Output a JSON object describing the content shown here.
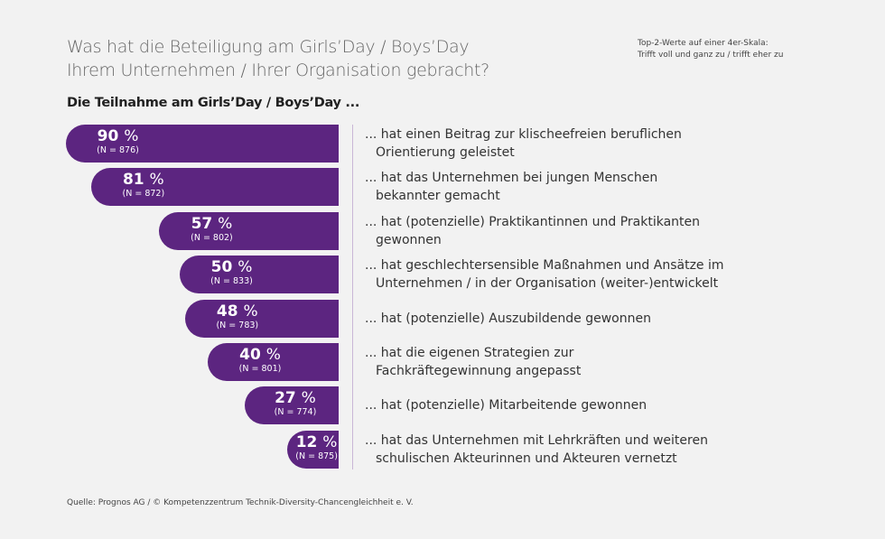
{
  "title_line1": "Was hat die Beteiligung am Girls’Day / Boys’Day",
  "title_line2": "Ihrem Unternehmen / Ihrer Organisation gebracht?",
  "note_line1": "Top-2-Werte auf einer 4er-Skala:",
  "note_line2": "Trifft voll und ganz zu / trifft eher zu",
  "subtitle": "Die Teilnahme am Girls’Day / Boys’Day ...",
  "source": "Quelle: Prognos AG / © Kompetenzzentrum Technik-Diversity-Chancengleichheit e. V.",
  "colors": {
    "bar": "#5c2580",
    "background": "#f2f2f2"
  },
  "chart_data": {
    "type": "bar",
    "orientation": "horizontal",
    "unit": "%",
    "categories": [
      [
        "... hat einen Beitrag zur klischeefreien beruflichen",
        "Orientierung geleistet"
      ],
      [
        "... hat das Unternehmen bei jungen Menschen",
        "bekannter gemacht"
      ],
      [
        "... hat (potenzielle) Praktikantinnen und Praktikanten",
        "gewonnen"
      ],
      [
        "... hat geschlechtersensible Maßnahmen und Ansätze im",
        "Unternehmen / in der Organisation (weiter-)entwickelt"
      ],
      [
        "... hat (potenzielle) Auszubildende gewonnen"
      ],
      [
        "... hat die eigenen Strategien zur",
        "Fachkräftegewinnung angepasst"
      ],
      [
        "... hat (potenzielle) Mitarbeitende gewonnen"
      ],
      [
        "... hat das Unternehmen mit Lehrkräften und weiteren",
        "schulischen Akteurinnen und Akteuren vernetzt"
      ]
    ],
    "values": [
      90,
      81,
      57,
      50,
      48,
      40,
      27,
      12
    ],
    "n_labels": [
      "(N = 876)",
      "(N = 872)",
      "(N = 802)",
      "(N = 833)",
      "(N = 783)",
      "(N = 801)",
      "(N = 774)",
      "(N = 875)"
    ]
  }
}
